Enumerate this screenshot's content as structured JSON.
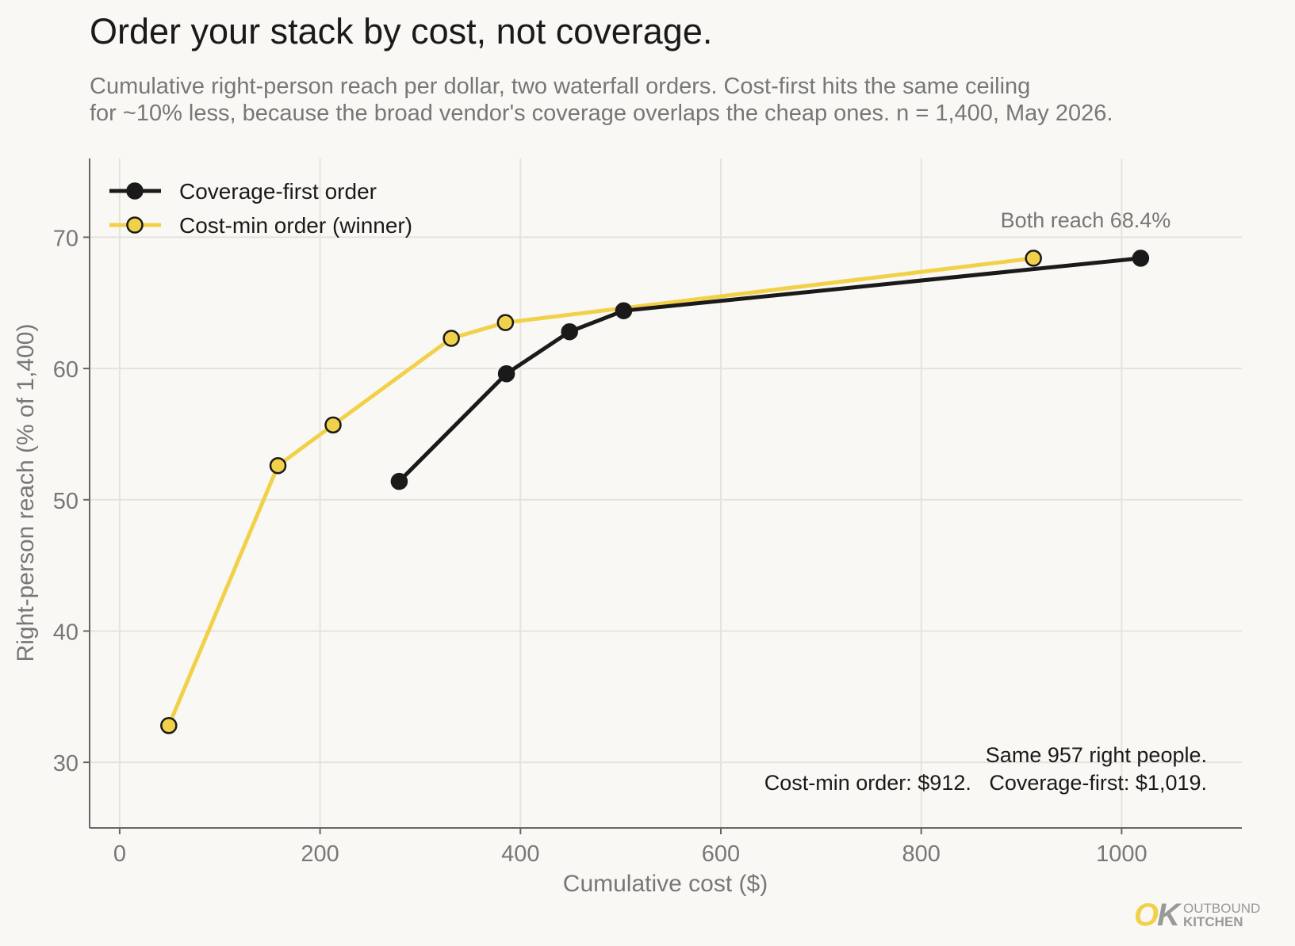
{
  "header": {
    "title": "Order your stack by cost, not coverage.",
    "subtitle_line1": "Cumulative right-person reach per dollar, two waterfall orders. Cost-first hits the same ceiling",
    "subtitle_line2": "for ~10% less, because the broad vendor's coverage overlaps the cheap ones. n = 1,400, May 2026."
  },
  "chart_data": {
    "type": "line",
    "title": "Order your stack by cost, not coverage.",
    "xlabel": "Cumulative cost ($)",
    "ylabel": "Right-person reach (% of 1,400)",
    "xlim": [
      -30,
      1120
    ],
    "ylim": [
      25,
      76
    ],
    "xticks": [
      0,
      200,
      400,
      600,
      800,
      1000
    ],
    "yticks": [
      30,
      40,
      50,
      60,
      70
    ],
    "grid": true,
    "legend_position": "top-left",
    "series": [
      {
        "name": "Coverage-first order",
        "color": "#1a1a1a",
        "marker_fill": "#1a1a1a",
        "x": [
          279,
          386,
          449,
          503,
          1019
        ],
        "y": [
          51.4,
          59.6,
          62.8,
          64.4,
          68.4
        ]
      },
      {
        "name": "Cost-min order (winner)",
        "color": "#f2d14a",
        "marker_fill": "#f2d14a",
        "x": [
          49,
          158,
          213,
          331,
          385,
          912
        ],
        "y": [
          32.8,
          52.6,
          55.7,
          62.3,
          63.5,
          68.4
        ]
      }
    ],
    "annotations": [
      {
        "text": "Both reach 68.4%"
      },
      {
        "text": "Same 957 right people."
      },
      {
        "text": "Cost-min order: $912.   Coverage-first: $1,019."
      }
    ]
  },
  "brand": {
    "mark_o": "O",
    "mark_k": "K",
    "word1": "OUTBOUND",
    "word2": "KITCHEN"
  }
}
